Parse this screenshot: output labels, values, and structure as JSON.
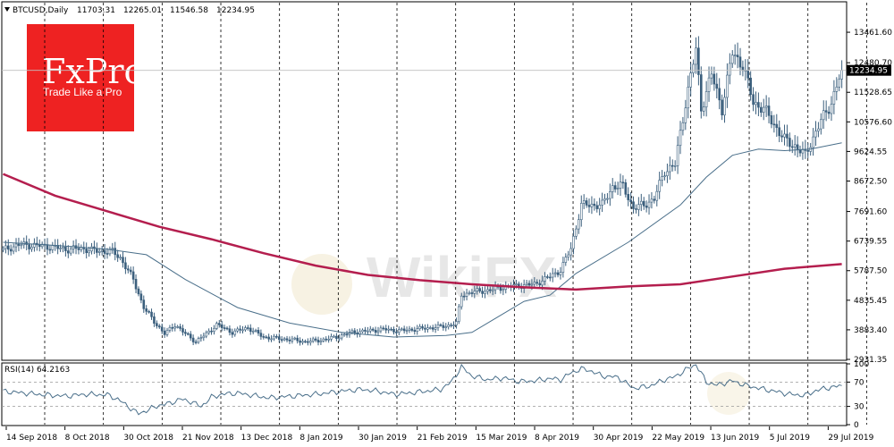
{
  "header": {
    "symbol": "BTCUSD,Daily",
    "open": "11703.31",
    "high": "12265.01",
    "low": "11546.58",
    "close": "12234.95",
    "expand_icon": "triangle-down-icon"
  },
  "brand": {
    "logo": "FxPro",
    "tagline": "Trade Like a Pro",
    "color": "#ee2222"
  },
  "watermark": {
    "text": "WikiFX"
  },
  "chart_data": [
    {
      "type": "candlestick",
      "title": "BTCUSD,Daily",
      "ylim": [
        2931.35,
        14413.15
      ],
      "y_ticks": [
        "13461.60",
        "12480.70",
        "11528.65",
        "10576.60",
        "9624.55",
        "8672.50",
        "7691.60",
        "6739.55",
        "5787.50",
        "4835.45",
        "3883.40",
        "2931.35"
      ],
      "x_ticks": [
        "14 Sep 2018",
        "8 Oct 2018",
        "30 Oct 2018",
        "21 Nov 2018",
        "13 Dec 2018",
        "8 Jan 2019",
        "30 Jan 2019",
        "21 Feb 2019",
        "15 Mar 2019",
        "8 Apr 2019",
        "30 Apr 2019",
        "22 May 2019",
        "13 Jun 2019",
        "5 Jul 2019",
        "29 Jul 2019"
      ],
      "period_separators_after_tick": [
        0,
        1,
        2,
        3,
        4,
        5,
        6,
        7,
        8,
        9,
        10,
        11,
        12,
        13,
        14
      ],
      "current_price": "12234.95",
      "price_anchors": [
        [
          0,
          6450
        ],
        [
          6,
          6620
        ],
        [
          12,
          6600
        ],
        [
          18,
          6560
        ],
        [
          24,
          6470
        ],
        [
          30,
          6500
        ],
        [
          36,
          6420
        ],
        [
          42,
          6400
        ],
        [
          45,
          6200
        ],
        [
          50,
          5500
        ],
        [
          54,
          4600
        ],
        [
          58,
          4150
        ],
        [
          62,
          3750
        ],
        [
          66,
          4050
        ],
        [
          70,
          3750
        ],
        [
          74,
          3500
        ],
        [
          78,
          3750
        ],
        [
          82,
          4050
        ],
        [
          88,
          3800
        ],
        [
          94,
          3950
        ],
        [
          100,
          3650
        ],
        [
          106,
          3600
        ],
        [
          112,
          3550
        ],
        [
          116,
          3500
        ],
        [
          122,
          3550
        ],
        [
          128,
          3650
        ],
        [
          134,
          3800
        ],
        [
          140,
          3850
        ],
        [
          146,
          3900
        ],
        [
          152,
          3850
        ],
        [
          158,
          3900
        ],
        [
          164,
          3950
        ],
        [
          170,
          4000
        ],
        [
          174,
          4100
        ],
        [
          176,
          5000
        ],
        [
          180,
          5100
        ],
        [
          186,
          5150
        ],
        [
          192,
          5250
        ],
        [
          198,
          5300
        ],
        [
          204,
          5350
        ],
        [
          210,
          5600
        ],
        [
          214,
          5800
        ],
        [
          218,
          6500
        ],
        [
          222,
          7900
        ],
        [
          226,
          7900
        ],
        [
          230,
          7900
        ],
        [
          234,
          8500
        ],
        [
          238,
          8500
        ],
        [
          242,
          7800
        ],
        [
          246,
          7900
        ],
        [
          250,
          8100
        ],
        [
          254,
          9000
        ],
        [
          258,
          9200
        ],
        [
          262,
          11200
        ],
        [
          266,
          12900
        ],
        [
          268,
          11000
        ],
        [
          272,
          12100
        ],
        [
          276,
          11000
        ],
        [
          280,
          12800
        ],
        [
          284,
          12400
        ],
        [
          288,
          11200
        ],
        [
          292,
          11000
        ],
        [
          296,
          10500
        ],
        [
          300,
          10000
        ],
        [
          304,
          9800
        ],
        [
          308,
          9500
        ],
        [
          310,
          9900
        ],
        [
          314,
          10600
        ],
        [
          318,
          11200
        ],
        [
          322,
          12234.95
        ]
      ],
      "series": [
        {
          "name": "",
          "kind": "ma-fast",
          "color": "#4a6f8a",
          "values": [
            [
              0,
              6700
            ],
            [
              20,
              6600
            ],
            [
              40,
              6480
            ],
            [
              55,
              6300
            ],
            [
              70,
              5500
            ],
            [
              90,
              4600
            ],
            [
              110,
              4100
            ],
            [
              130,
              3800
            ],
            [
              150,
              3650
            ],
            [
              170,
              3700
            ],
            [
              180,
              3800
            ],
            [
              190,
              4300
            ],
            [
              200,
              4800
            ],
            [
              210,
              5000
            ],
            [
              220,
              5700
            ],
            [
              240,
              6700
            ],
            [
              260,
              7900
            ],
            [
              270,
              8800
            ],
            [
              280,
              9500
            ],
            [
              290,
              9700
            ],
            [
              300,
              9650
            ],
            [
              310,
              9700
            ],
            [
              322,
              9900
            ]
          ]
        },
        {
          "name": "",
          "kind": "ma-slow",
          "color": "#b41e4e",
          "values": [
            [
              0,
              8900
            ],
            [
              20,
              8200
            ],
            [
              40,
              7700
            ],
            [
              60,
              7200
            ],
            [
              80,
              6800
            ],
            [
              100,
              6350
            ],
            [
              120,
              5950
            ],
            [
              140,
              5650
            ],
            [
              160,
              5480
            ],
            [
              180,
              5350
            ],
            [
              200,
              5250
            ],
            [
              220,
              5180
            ],
            [
              240,
              5280
            ],
            [
              260,
              5350
            ],
            [
              280,
              5600
            ],
            [
              300,
              5850
            ],
            [
              322,
              6000
            ]
          ]
        }
      ]
    },
    {
      "type": "line",
      "title": "RSI(14) 64.2163",
      "ylim": [
        0,
        100
      ],
      "y_ticks": [
        "100",
        "70",
        "30",
        "0"
      ],
      "levels": [
        70,
        30
      ],
      "series": [
        {
          "name": "",
          "color": "#4a6f8a",
          "values": [
            [
              0,
              55
            ],
            [
              8,
              52
            ],
            [
              16,
              49
            ],
            [
              24,
              47
            ],
            [
              32,
              50
            ],
            [
              40,
              49
            ],
            [
              44,
              42
            ],
            [
              48,
              30
            ],
            [
              52,
              18
            ],
            [
              56,
              25
            ],
            [
              60,
              32
            ],
            [
              64,
              35
            ],
            [
              68,
              42
            ],
            [
              72,
              38
            ],
            [
              76,
              30
            ],
            [
              80,
              45
            ],
            [
              84,
              50
            ],
            [
              90,
              52
            ],
            [
              96,
              48
            ],
            [
              102,
              44
            ],
            [
              108,
              46
            ],
            [
              114,
              48
            ],
            [
              120,
              50
            ],
            [
              126,
              53
            ],
            [
              132,
              56
            ],
            [
              138,
              58
            ],
            [
              144,
              55
            ],
            [
              150,
              50
            ],
            [
              156,
              52
            ],
            [
              162,
              55
            ],
            [
              168,
              58
            ],
            [
              172,
              70
            ],
            [
              176,
              95
            ],
            [
              180,
              80
            ],
            [
              186,
              74
            ],
            [
              192,
              77
            ],
            [
              198,
              71
            ],
            [
              204,
              72
            ],
            [
              210,
              76
            ],
            [
              214,
              74
            ],
            [
              218,
              85
            ],
            [
              222,
              92
            ],
            [
              226,
              88
            ],
            [
              230,
              80
            ],
            [
              236,
              78
            ],
            [
              242,
              60
            ],
            [
              248,
              63
            ],
            [
              254,
              74
            ],
            [
              258,
              79
            ],
            [
              262,
              90
            ],
            [
              266,
              99
            ],
            [
              270,
              70
            ],
            [
              274,
              65
            ],
            [
              280,
              72
            ],
            [
              284,
              66
            ],
            [
              290,
              60
            ],
            [
              296,
              55
            ],
            [
              302,
              50
            ],
            [
              308,
              48
            ],
            [
              312,
              56
            ],
            [
              316,
              60
            ],
            [
              322,
              64.2163
            ]
          ]
        }
      ]
    }
  ]
}
